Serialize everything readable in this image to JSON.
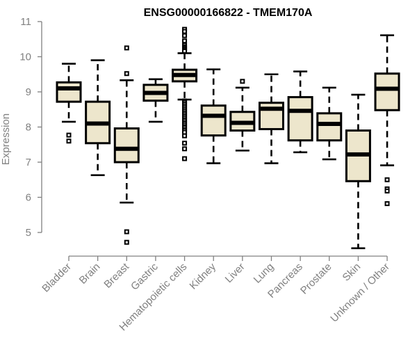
{
  "chart_data": {
    "type": "box",
    "title": "ENSG00000166822 - TMEM170A",
    "xlabel": "",
    "ylabel": "Expression",
    "ylim": [
      4.5,
      11
    ],
    "yticks": [
      5,
      6,
      7,
      8,
      9,
      10,
      11
    ],
    "grid": false,
    "colors": {
      "box_fill": "#ede6cc",
      "box_stroke": "#000000",
      "axis": "#808080"
    },
    "categories": [
      "Bladder",
      "Brain",
      "Breast",
      "Gastric",
      "Hematopoietic cells",
      "Kidney",
      "Liver",
      "Lung",
      "Pancreas",
      "Prostate",
      "Skin",
      "Unknown / Other"
    ],
    "boxes": [
      {
        "name": "Bladder",
        "whisker_low": 8.15,
        "q1": 8.72,
        "median": 9.1,
        "q3": 9.27,
        "whisker_high": 9.8,
        "outliers": [
          7.77,
          7.6
        ]
      },
      {
        "name": "Brain",
        "whisker_low": 6.63,
        "q1": 7.54,
        "median": 8.1,
        "q3": 8.72,
        "whisker_high": 9.9,
        "outliers": []
      },
      {
        "name": "Breast",
        "whisker_low": 5.85,
        "q1": 7.0,
        "median": 7.38,
        "q3": 7.96,
        "whisker_high": 9.33,
        "outliers": [
          10.25,
          9.52,
          5.02,
          4.72
        ]
      },
      {
        "name": "Gastric",
        "whisker_low": 8.15,
        "q1": 8.75,
        "median": 8.97,
        "q3": 9.2,
        "whisker_high": 9.36,
        "outliers": []
      },
      {
        "name": "Hematopoietic cells",
        "whisker_low": 8.78,
        "q1": 9.3,
        "median": 9.48,
        "q3": 9.63,
        "whisker_high": 10.1,
        "outliers": [
          10.78,
          10.72,
          10.6,
          10.45,
          10.33,
          10.28,
          10.24,
          10.2,
          10.16,
          8.74,
          8.7,
          8.65,
          8.6,
          8.55,
          8.5,
          8.45,
          8.4,
          8.35,
          8.3,
          8.25,
          8.2,
          8.15,
          8.1,
          8.05,
          8.0,
          7.95,
          7.9,
          7.85,
          7.75,
          7.54,
          7.38,
          7.1
        ]
      },
      {
        "name": "Kidney",
        "whisker_low": 6.97,
        "q1": 7.76,
        "median": 8.32,
        "q3": 8.61,
        "whisker_high": 9.64,
        "outliers": []
      },
      {
        "name": "Liver",
        "whisker_low": 7.33,
        "q1": 7.9,
        "median": 8.12,
        "q3": 8.43,
        "whisker_high": 9.12,
        "outliers": [
          9.3
        ]
      },
      {
        "name": "Lung",
        "whisker_low": 6.97,
        "q1": 7.94,
        "median": 8.52,
        "q3": 8.69,
        "whisker_high": 9.5,
        "outliers": []
      },
      {
        "name": "Pancreas",
        "whisker_low": 7.28,
        "q1": 7.62,
        "median": 8.46,
        "q3": 8.85,
        "whisker_high": 9.58,
        "outliers": []
      },
      {
        "name": "Prostate",
        "whisker_low": 7.08,
        "q1": 7.62,
        "median": 8.09,
        "q3": 8.39,
        "whisker_high": 9.12,
        "outliers": []
      },
      {
        "name": "Skin",
        "whisker_low": 4.55,
        "q1": 6.46,
        "median": 7.22,
        "q3": 7.9,
        "whisker_high": 8.92,
        "outliers": []
      },
      {
        "name": "Unknown / Other",
        "whisker_low": 6.91,
        "q1": 8.48,
        "median": 9.09,
        "q3": 9.52,
        "whisker_high": 10.61,
        "outliers": [
          6.5,
          6.24,
          6.18,
          5.82
        ]
      }
    ]
  }
}
